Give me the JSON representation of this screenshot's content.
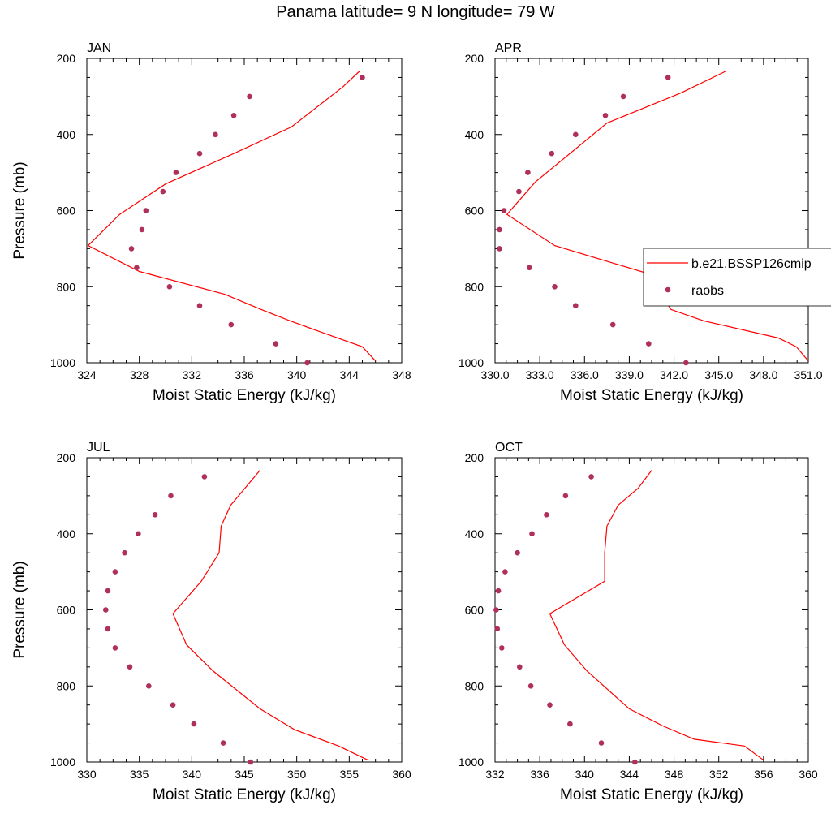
{
  "figure": {
    "title": "Panama  latitude= 9 N longitude= 79 W"
  },
  "legend": {
    "model_label": "b.e21.BSSP126cmip",
    "obs_label": "raobs",
    "model_color": "#ff0000",
    "obs_color": "#b0305c"
  },
  "chart_data": [
    {
      "type": "scatter",
      "panel_label": "JAN",
      "xlabel": "Moist Static Energy (kJ/kg)",
      "ylabel": "Pressure (mb)",
      "xlim": [
        324,
        348
      ],
      "ylim": [
        1000,
        200
      ],
      "y_reversed": true,
      "x_ticks": [
        "324",
        "328",
        "332",
        "336",
        "340",
        "344",
        "348"
      ],
      "y_ticks": [
        "200",
        "400",
        "600",
        "800",
        "1000"
      ],
      "series": [
        {
          "name": "b.e21.BSSP126cmip",
          "style": "line",
          "points": [
            [
              344.8,
              233
            ],
            [
              343.5,
              275
            ],
            [
              339.6,
              380
            ],
            [
              335.2,
              450
            ],
            [
              330.0,
              530
            ],
            [
              326.5,
              610
            ],
            [
              324.1,
              692
            ],
            [
              328.0,
              760
            ],
            [
              334.5,
              820
            ],
            [
              337.3,
              860
            ],
            [
              339.5,
              890
            ],
            [
              341.5,
              915
            ],
            [
              345.0,
              958
            ],
            [
              346.0,
              995
            ]
          ]
        },
        {
          "name": "raobs",
          "style": "marker",
          "points": [
            [
              345.0,
              250
            ],
            [
              336.4,
              300
            ],
            [
              335.2,
              350
            ],
            [
              333.8,
              400
            ],
            [
              332.6,
              450
            ],
            [
              330.8,
              500
            ],
            [
              329.8,
              550
            ],
            [
              328.5,
              600
            ],
            [
              328.2,
              650
            ],
            [
              327.4,
              700
            ],
            [
              327.8,
              750
            ],
            [
              330.3,
              800
            ],
            [
              332.6,
              850
            ],
            [
              335.0,
              900
            ],
            [
              338.4,
              950
            ],
            [
              340.8,
              1000
            ]
          ]
        }
      ]
    },
    {
      "type": "scatter",
      "panel_label": "APR",
      "xlabel": "Moist Static Energy (kJ/kg)",
      "ylabel": "",
      "xlim": [
        330.0,
        351.0
      ],
      "ylim": [
        1000,
        200
      ],
      "y_reversed": true,
      "x_ticks": [
        "330.0",
        "333.0",
        "336.0",
        "339.0",
        "342.0",
        "345.0",
        "348.0",
        "351.0"
      ],
      "y_ticks": [
        "200",
        "400",
        "600",
        "800",
        "1000"
      ],
      "series": [
        {
          "name": "b.e21.BSSP126cmip",
          "style": "line",
          "points": [
            [
              345.5,
              233
            ],
            [
              342.5,
              290
            ],
            [
              337.5,
              370
            ],
            [
              332.7,
              525
            ],
            [
              330.8,
              610
            ],
            [
              334.0,
              692
            ],
            [
              340.2,
              765
            ],
            [
              341.8,
              860
            ],
            [
              344.0,
              890
            ],
            [
              349.0,
              935
            ],
            [
              350.2,
              958
            ],
            [
              351.0,
              995
            ]
          ]
        },
        {
          "name": "raobs",
          "style": "marker",
          "points": [
            [
              341.6,
              250
            ],
            [
              338.6,
              300
            ],
            [
              337.4,
              350
            ],
            [
              335.4,
              400
            ],
            [
              333.8,
              450
            ],
            [
              332.2,
              500
            ],
            [
              331.6,
              550
            ],
            [
              330.6,
              600
            ],
            [
              330.3,
              650
            ],
            [
              330.3,
              700
            ],
            [
              332.3,
              750
            ],
            [
              334.0,
              800
            ],
            [
              335.4,
              850
            ],
            [
              337.9,
              900
            ],
            [
              340.3,
              950
            ],
            [
              342.8,
              1000
            ]
          ]
        }
      ]
    },
    {
      "type": "scatter",
      "panel_label": "JUL",
      "xlabel": "Moist Static Energy (kJ/kg)",
      "ylabel": "Pressure (mb)",
      "xlim": [
        330,
        360
      ],
      "ylim": [
        1000,
        200
      ],
      "y_reversed": true,
      "x_ticks": [
        "330",
        "335",
        "340",
        "345",
        "350",
        "355",
        "360"
      ],
      "y_ticks": [
        "200",
        "400",
        "600",
        "800",
        "1000"
      ],
      "series": [
        {
          "name": "b.e21.BSSP126cmip",
          "style": "line",
          "points": [
            [
              346.5,
              233
            ],
            [
              343.7,
              325
            ],
            [
              342.8,
              380
            ],
            [
              342.6,
              450
            ],
            [
              340.9,
              525
            ],
            [
              338.2,
              610
            ],
            [
              339.5,
              692
            ],
            [
              342.0,
              760
            ],
            [
              346.5,
              860
            ],
            [
              349.8,
              915
            ],
            [
              354.0,
              958
            ],
            [
              356.8,
              995
            ]
          ]
        },
        {
          "name": "raobs",
          "style": "marker",
          "points": [
            [
              341.2,
              250
            ],
            [
              338.0,
              300
            ],
            [
              336.5,
              350
            ],
            [
              334.9,
              400
            ],
            [
              333.6,
              450
            ],
            [
              332.7,
              500
            ],
            [
              332.0,
              550
            ],
            [
              331.8,
              600
            ],
            [
              332.0,
              650
            ],
            [
              332.7,
              700
            ],
            [
              334.1,
              750
            ],
            [
              335.9,
              800
            ],
            [
              338.2,
              850
            ],
            [
              340.2,
              900
            ],
            [
              343.0,
              950
            ],
            [
              345.6,
              1000
            ]
          ]
        }
      ]
    },
    {
      "type": "scatter",
      "panel_label": "OCT",
      "xlabel": "Moist Static Energy (kJ/kg)",
      "ylabel": "",
      "xlim": [
        332,
        360
      ],
      "ylim": [
        1000,
        200
      ],
      "y_reversed": true,
      "x_ticks": [
        "332",
        "336",
        "340",
        "344",
        "348",
        "352",
        "356",
        "360"
      ],
      "y_ticks": [
        "200",
        "400",
        "600",
        "800",
        "1000"
      ],
      "series": [
        {
          "name": "b.e21.BSSP126cmip",
          "style": "line",
          "points": [
            [
              346.0,
              233
            ],
            [
              344.8,
              280
            ],
            [
              343.0,
              325
            ],
            [
              342.0,
              380
            ],
            [
              341.8,
              450
            ],
            [
              341.8,
              525
            ],
            [
              336.9,
              610
            ],
            [
              338.2,
              692
            ],
            [
              340.2,
              760
            ],
            [
              344.0,
              860
            ],
            [
              347.0,
              905
            ],
            [
              349.8,
              940
            ],
            [
              354.3,
              958
            ],
            [
              356.0,
              995
            ]
          ]
        },
        {
          "name": "raobs",
          "style": "marker",
          "points": [
            [
              340.6,
              250
            ],
            [
              338.3,
              300
            ],
            [
              336.6,
              350
            ],
            [
              335.3,
              400
            ],
            [
              334.0,
              450
            ],
            [
              332.9,
              500
            ],
            [
              332.3,
              550
            ],
            [
              332.1,
              600
            ],
            [
              332.2,
              650
            ],
            [
              332.6,
              700
            ],
            [
              334.2,
              750
            ],
            [
              335.2,
              800
            ],
            [
              336.9,
              850
            ],
            [
              338.7,
              900
            ],
            [
              341.5,
              950
            ],
            [
              344.5,
              1000
            ]
          ]
        }
      ]
    }
  ]
}
